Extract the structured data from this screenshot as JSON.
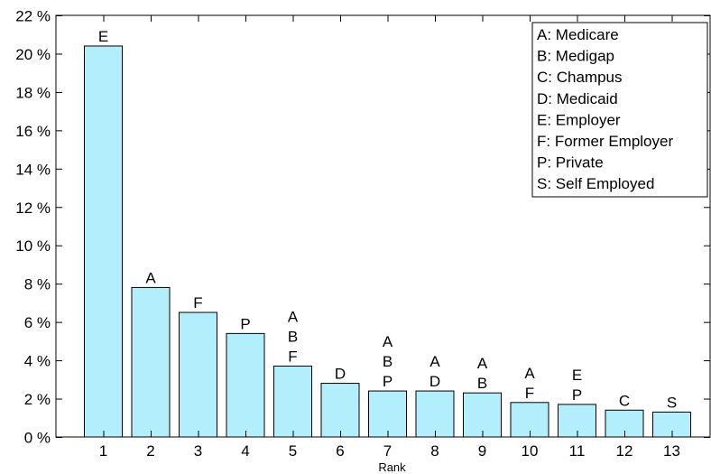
{
  "chart_data": {
    "type": "bar",
    "xlabel": "Rank",
    "ylabel": "",
    "ylim": [
      0,
      22
    ],
    "yticks": [
      0,
      2,
      4,
      6,
      8,
      10,
      12,
      14,
      16,
      18,
      20,
      22
    ],
    "ytick_suffix": " %",
    "categories": [
      "1",
      "2",
      "3",
      "4",
      "5",
      "6",
      "7",
      "8",
      "9",
      "10",
      "11",
      "12",
      "13"
    ],
    "values": [
      20.4,
      7.8,
      6.5,
      5.4,
      3.7,
      2.8,
      2.4,
      2.4,
      2.3,
      1.8,
      1.7,
      1.4,
      1.3
    ],
    "bar_labels": [
      [
        "E"
      ],
      [
        "A"
      ],
      [
        "F"
      ],
      [
        "P"
      ],
      [
        "A",
        "B",
        "F"
      ],
      [
        "D"
      ],
      [
        "A",
        "B",
        "P"
      ],
      [
        "A",
        "D"
      ],
      [
        "A",
        "B"
      ],
      [
        "A",
        "F"
      ],
      [
        "E",
        "P"
      ],
      [
        "C"
      ],
      [
        "S"
      ]
    ],
    "bar_color": "#b3eefc",
    "grid": false,
    "legend_position": "top-right",
    "legend": [
      "A: Medicare",
      "B: Medigap",
      "C: Champus",
      "D: Medicaid",
      "E: Employer",
      "F: Former Employer",
      "P: Private",
      "S: Self Employed"
    ]
  }
}
